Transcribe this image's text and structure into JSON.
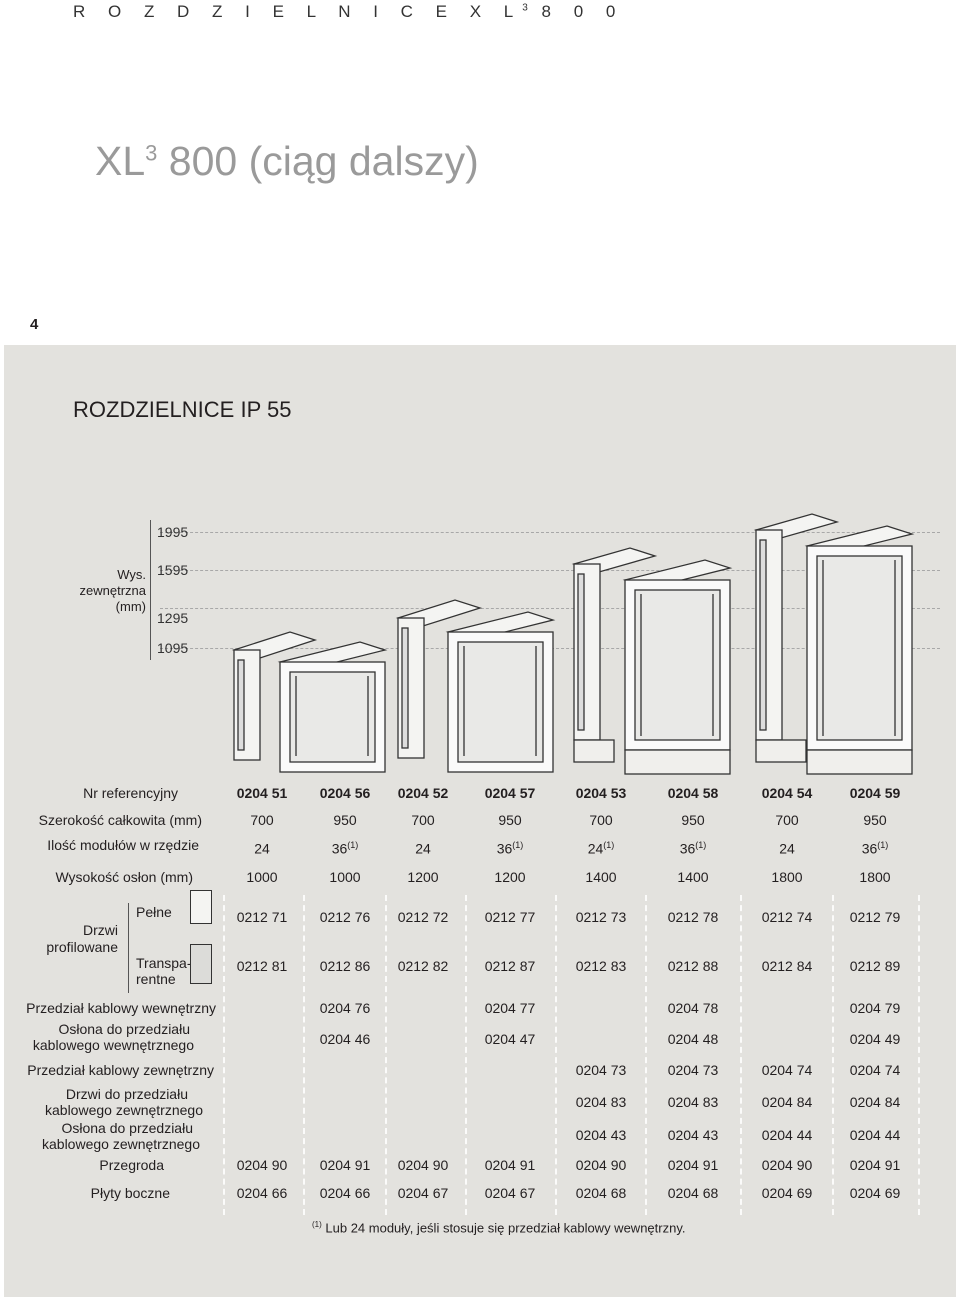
{
  "header": {
    "prefix": "R O Z D Z I E L N I C E   X L",
    "sup": "3",
    "suffix": "  8 0 0"
  },
  "title": {
    "main": "XL",
    "sup": "3",
    "rest": " 800 (ciąg dalszy)"
  },
  "page_number": "4",
  "section_title": "ROZDZIELNICE IP 55",
  "height_axis": {
    "label": "Wys.\nzewnętrzna\n(mm)",
    "ticks": [
      "1995",
      "1595",
      "1295",
      "1095"
    ]
  },
  "columns": [
    "0204 51",
    "0204 56",
    "0204 52",
    "0204 57",
    "0204 53",
    "0204 58",
    "0204 54",
    "0204 59"
  ],
  "rows": {
    "ref_label": "Nr referencyjny",
    "width_label": "Szerokość całkowita (mm)",
    "width": [
      "700",
      "950",
      "700",
      "950",
      "700",
      "950",
      "700",
      "950"
    ],
    "modules_label": "Ilość modułów w rzędzie",
    "modules": [
      {
        "v": "24",
        "s": ""
      },
      {
        "v": "36",
        "s": "(1)"
      },
      {
        "v": "24",
        "s": ""
      },
      {
        "v": "36",
        "s": "(1)"
      },
      {
        "v": "24",
        "s": "(1)"
      },
      {
        "v": "36",
        "s": "(1)"
      },
      {
        "v": "24",
        "s": ""
      },
      {
        "v": "36",
        "s": "(1)"
      }
    ],
    "height_label": "Wysokość osłon (mm)",
    "height": [
      "1000",
      "1000",
      "1200",
      "1200",
      "1400",
      "1400",
      "1800",
      "1800"
    ],
    "doors_label_1": "Drzwi",
    "doors_label_2": "profilowane",
    "doors_full_label": "Pełne",
    "doors_full": [
      "0212 71",
      "0212 76",
      "0212 72",
      "0212 77",
      "0212 73",
      "0212 78",
      "0212 74",
      "0212 79"
    ],
    "doors_trans_label_1": "Transpa-",
    "doors_trans_label_2": "rentne",
    "doors_trans": [
      "0212 81",
      "0212 86",
      "0212 82",
      "0212 87",
      "0212 83",
      "0212 88",
      "0212 84",
      "0212 89"
    ],
    "inner_cable_label": "Przedział kablowy wewnętrzny",
    "inner_cable": [
      "",
      "0204 76",
      "",
      "0204 77",
      "",
      "0204 78",
      "",
      "0204 79"
    ],
    "inner_cover_label_1": "Osłona do przedziału",
    "inner_cover_label_2": "kablowego wewnętrznego",
    "inner_cover": [
      "",
      "0204 46",
      "",
      "0204 47",
      "",
      "0204 48",
      "",
      "0204 49"
    ],
    "outer_cable_label": "Przedział kablowy zewnętrzny",
    "outer_cable": [
      "",
      "",
      "",
      "",
      "0204 73",
      "0204 73",
      "0204 74",
      "0204 74"
    ],
    "outer_door_label_1": "Drzwi do przedziału",
    "outer_door_label_2": "kablowego zewnętrznego",
    "outer_door": [
      "",
      "",
      "",
      "",
      "0204 83",
      "0204 83",
      "0204 84",
      "0204 84"
    ],
    "outer_cover_label_1": "Osłona do przedziału",
    "outer_cover_label_2": "kablowego zewnętrznego",
    "outer_cover": [
      "",
      "",
      "",
      "",
      "0204 43",
      "0204 43",
      "0204 44",
      "0204 44"
    ],
    "partition_label": "Przegroda",
    "partition": [
      "0204 90",
      "0204 91",
      "0204 90",
      "0204 91",
      "0204 90",
      "0204 91",
      "0204 90",
      "0204 91"
    ],
    "side_label": "Płyty boczne",
    "side": [
      "0204 66",
      "0204 66",
      "0204 67",
      "0204 67",
      "0204 68",
      "0204 68",
      "0204 69",
      "0204 69"
    ]
  },
  "footnote": {
    "mark": "(1)",
    "text": " Lub 24 moduły, jeśli stosuje się przedział kablowy wewnętrzny."
  }
}
